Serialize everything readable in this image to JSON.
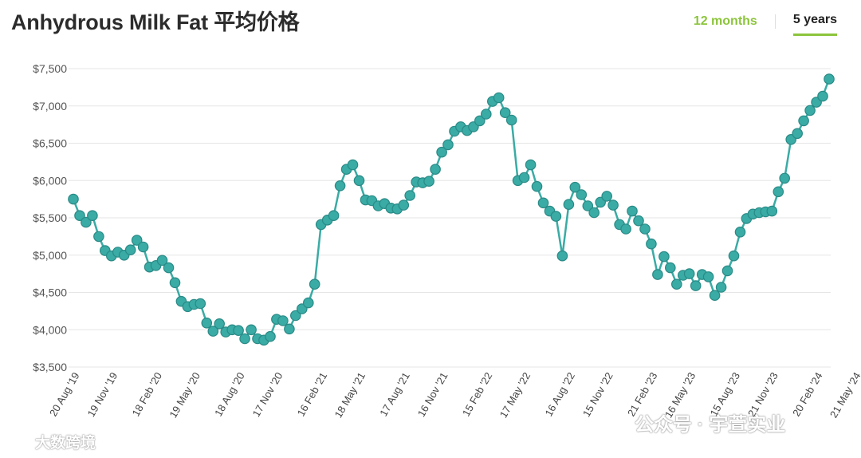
{
  "header": {
    "title": "Anhydrous Milk Fat 平均价格",
    "tabs": [
      {
        "label": "12 months",
        "active": false
      },
      {
        "label": "5 years",
        "active": true
      }
    ]
  },
  "colors": {
    "series": "#3aaba5",
    "series_stroke": "#2a8a86",
    "grid": "#e6e6e6",
    "accent": "#8cc43c"
  },
  "watermarks": {
    "left": "大数跨境",
    "right": "公众号 · 宇萱实业"
  },
  "chart_data": {
    "type": "line",
    "title": "Anhydrous Milk Fat 平均价格",
    "xlabel": "",
    "ylabel": "",
    "ylim": [
      3500,
      7500
    ],
    "yticks": [
      7500,
      7000,
      6500,
      6000,
      5500,
      5000,
      4500,
      4000,
      3500
    ],
    "ytick_labels": [
      "$7,500",
      "$7,000",
      "$6,500",
      "$6,000",
      "$5,500",
      "$5,000",
      "$4,500",
      "$4,000",
      "$3,500"
    ],
    "grid": true,
    "xtick_labels": [
      {
        "index": 1,
        "label": "20 Aug '19"
      },
      {
        "index": 7,
        "label": "19 Nov '19"
      },
      {
        "index": 14,
        "label": "18 Feb '20"
      },
      {
        "index": 20,
        "label": "19 May '20"
      },
      {
        "index": 27,
        "label": "18 Aug '20"
      },
      {
        "index": 33,
        "label": "17 Nov '20"
      },
      {
        "index": 40,
        "label": "16 Feb '21"
      },
      {
        "index": 46,
        "label": "18 May '21"
      },
      {
        "index": 53,
        "label": "17 Aug '21"
      },
      {
        "index": 59,
        "label": "16 Nov '21"
      },
      {
        "index": 66,
        "label": "15 Feb '22"
      },
      {
        "index": 72,
        "label": "17 May '22"
      },
      {
        "index": 79,
        "label": "16 Aug '22"
      },
      {
        "index": 85,
        "label": "15 Nov '22"
      },
      {
        "index": 92,
        "label": "21 Feb '23"
      },
      {
        "index": 98,
        "label": "16 May '23"
      },
      {
        "index": 105,
        "label": "15 Aug '23"
      },
      {
        "index": 111,
        "label": "21 Nov '23"
      },
      {
        "index": 118,
        "label": "20 Feb '24"
      },
      {
        "index": 124,
        "label": "21 May '24"
      }
    ],
    "series": [
      {
        "values": [
          5750,
          5530,
          5440,
          5530,
          5250,
          5060,
          4990,
          5040,
          5000,
          5070,
          5200,
          5110,
          4840,
          4860,
          4930,
          4830,
          4630,
          4380,
          4310,
          4340,
          4350,
          4090,
          3980,
          4080,
          3970,
          4000,
          3990,
          3880,
          4000,
          3880,
          3860,
          3910,
          4140,
          4120,
          4010,
          4190,
          4280,
          4360,
          4610,
          5410,
          5470,
          5530,
          5930,
          6150,
          6210,
          6000,
          5740,
          5730,
          5660,
          5690,
          5630,
          5620,
          5670,
          5800,
          5980,
          5970,
          5990,
          6150,
          6380,
          6480,
          6660,
          6720,
          6670,
          6720,
          6800,
          6890,
          7060,
          7110,
          6910,
          6810,
          6000,
          6040,
          6210,
          5920,
          5700,
          5590,
          5520,
          4990,
          5680,
          5910,
          5810,
          5660,
          5570,
          5710,
          5790,
          5670,
          5410,
          5350,
          5590,
          5460,
          5350,
          5150,
          4740,
          4980,
          4830,
          4610,
          4730,
          4750,
          4590,
          4740,
          4710,
          4460,
          4570,
          4790,
          4990,
          5310,
          5490,
          5550,
          5570,
          5580,
          5590,
          5850,
          6030,
          6550,
          6630,
          6800,
          6940,
          7050,
          7130,
          7360
        ]
      }
    ]
  }
}
